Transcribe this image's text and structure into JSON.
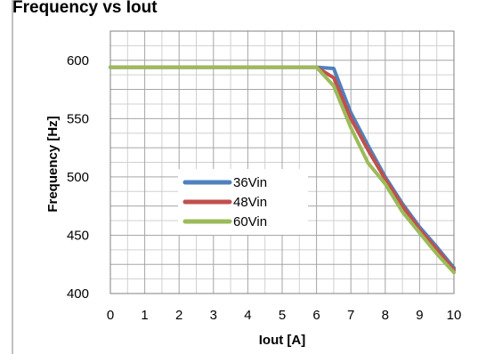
{
  "title_fragment": "Frequency vs Iout",
  "chart_data": {
    "type": "line",
    "xlabel": "Iout [A]",
    "ylabel": "Frequency [Hz]",
    "xlim": [
      0,
      10
    ],
    "ylim": [
      400,
      625
    ],
    "x_ticks": [
      0,
      1,
      2,
      3,
      4,
      5,
      6,
      7,
      8,
      9,
      10
    ],
    "y_ticks": [
      400,
      450,
      500,
      550,
      600
    ],
    "grid": true,
    "minor_gridlines": true,
    "legend_position": "center-left",
    "series": [
      {
        "name": "36Vin",
        "color": "#4F81BD",
        "x": [
          0,
          1,
          2,
          3,
          4,
          5,
          6,
          6.5,
          7,
          7.5,
          8,
          8.5,
          9,
          9.5,
          10
        ],
        "y": [
          594,
          594,
          594,
          594,
          594,
          594,
          594,
          593,
          555,
          527,
          500,
          477,
          457,
          440,
          422
        ]
      },
      {
        "name": "48Vin",
        "color": "#C0504D",
        "x": [
          0,
          1,
          2,
          3,
          4,
          5,
          6,
          6.5,
          7,
          7.5,
          8,
          8.5,
          9,
          9.5,
          10
        ],
        "y": [
          594,
          594,
          594,
          594,
          594,
          594,
          594,
          585,
          550,
          523,
          498,
          475,
          455,
          438,
          420
        ]
      },
      {
        "name": "60Vin",
        "color": "#9BBB59",
        "x": [
          0,
          1,
          2,
          3,
          4,
          5,
          6,
          6.5,
          7,
          7.5,
          8,
          8.5,
          9,
          9.5,
          10
        ],
        "y": [
          594,
          594,
          594,
          594,
          594,
          594,
          594,
          578,
          542,
          512,
          494,
          470,
          452,
          434,
          418
        ]
      }
    ]
  }
}
